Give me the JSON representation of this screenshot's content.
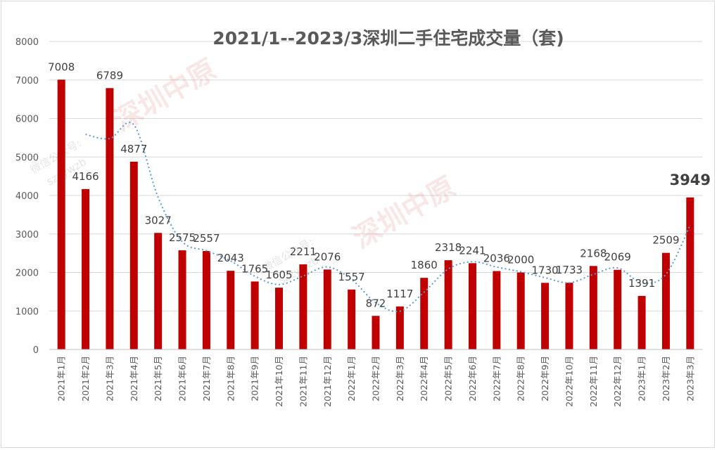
{
  "chart_data": {
    "type": "bar",
    "title": "2021/1--2023/3深圳二手住宅成交量（套)",
    "categories": [
      "2021年1月",
      "2021年2月",
      "2021年3月",
      "2021年4月",
      "2021年5月",
      "2021年6月",
      "2021年7月",
      "2021年8月",
      "2021年9月",
      "2021年10月",
      "2021年11月",
      "2021年12月",
      "2022年1月",
      "2022年2月",
      "2022年3月",
      "2022年4月",
      "2022年5月",
      "2022年6月",
      "2022年7月",
      "2022年8月",
      "2022年9月",
      "2022年10月",
      "2022年11月",
      "2022年12月",
      "2023年1月",
      "2023年2月",
      "2023年3月"
    ],
    "values": [
      7008,
      4166,
      6789,
      4877,
      3027,
      2575,
      2557,
      2043,
      1765,
      1605,
      2211,
      2076,
      1557,
      872,
      1117,
      1860,
      2318,
      2241,
      2036,
      2000,
      1730,
      1733,
      2168,
      2069,
      1391,
      2509,
      3949
    ],
    "value_labels": [
      "7008",
      "4166",
      "6789",
      "4877",
      "3027",
      "2575",
      "2557",
      "2043",
      "1765",
      "1605",
      "2211",
      "2076",
      "1557",
      "872",
      "1117",
      "1860",
      "2318",
      "2241",
      "2036",
      "2000",
      "1730",
      "1733",
      "2168",
      "2069",
      "1391",
      "2509",
      "3949"
    ],
    "yticks": [
      "0",
      "1000",
      "2000",
      "3000",
      "4000",
      "5000",
      "6000",
      "7000",
      "8000"
    ],
    "ylim": [
      0,
      8000
    ],
    "xlabel": "",
    "ylabel": "",
    "grid": true,
    "trendline": "2-period moving average",
    "bar_color": "#c00000",
    "trendline_color": "#5b9bd5",
    "highlighted_label": "3949"
  },
  "watermark": {
    "brand": "深圳中原",
    "channel": "微信公众号:",
    "handle": "szzywzb"
  }
}
